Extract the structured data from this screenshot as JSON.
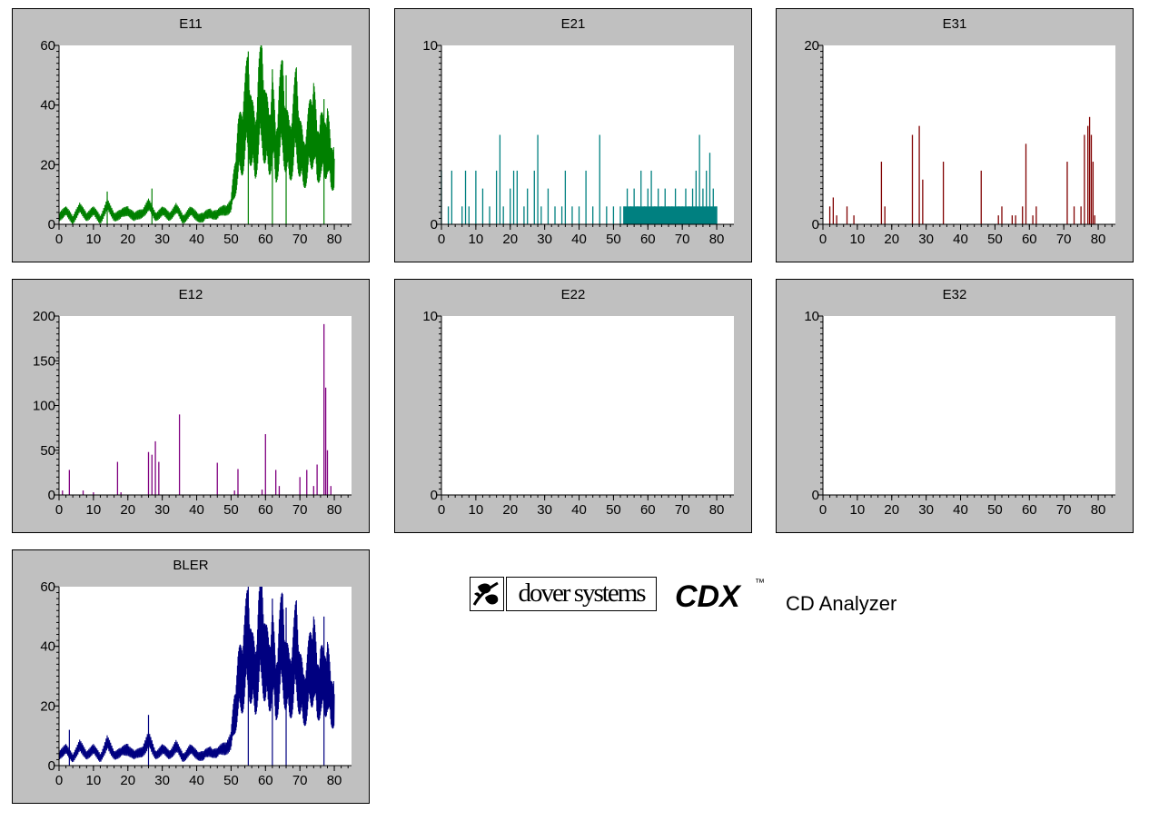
{
  "colors": {
    "E11": "#008000",
    "E21": "#008080",
    "E31": "#800000",
    "E12": "#800080",
    "E22": "#000080",
    "E32": "#000080",
    "BLER": "#000080",
    "panel_bg": "#c0c0c0",
    "plot_bg": "#ffffff"
  },
  "chart_data": [
    {
      "title": "E11",
      "type": "line",
      "xlim": [
        0,
        85
      ],
      "ylim": [
        0,
        60
      ],
      "xticks": [
        "0",
        "10",
        "20",
        "30",
        "40",
        "50",
        "60",
        "70",
        "80"
      ],
      "yticks": [
        "0",
        "20",
        "40",
        "60"
      ],
      "series": [
        {
          "x": [
            0,
            2,
            4,
            6,
            8,
            10,
            12,
            14,
            16,
            18,
            20,
            22,
            24,
            26,
            28,
            30,
            32,
            34,
            36,
            38,
            40,
            42,
            44,
            46,
            48,
            50,
            51,
            52,
            53,
            54,
            55,
            56,
            57,
            58,
            59,
            60,
            61,
            62,
            63,
            64,
            65,
            66,
            67,
            68,
            69,
            70,
            71,
            72,
            73,
            74,
            75,
            76,
            77,
            78,
            79,
            80
          ],
          "y": [
            3,
            4,
            2,
            5,
            3,
            4,
            2,
            6,
            3,
            3,
            5,
            2,
            4,
            6,
            3,
            4,
            3,
            5,
            2,
            4,
            3,
            2,
            4,
            3,
            5,
            6,
            15,
            24,
            28,
            34,
            42,
            30,
            25,
            38,
            44,
            32,
            27,
            36,
            22,
            34,
            40,
            28,
            24,
            30,
            38,
            26,
            20,
            24,
            30,
            36,
            22,
            28,
            24,
            30,
            18,
            22
          ]
        }
      ],
      "spikes": [
        {
          "x": 14,
          "y": 11
        },
        {
          "x": 27,
          "y": 12
        },
        {
          "x": 55,
          "y": 58
        },
        {
          "x": 62,
          "y": 52
        },
        {
          "x": 66,
          "y": 50
        },
        {
          "x": 77,
          "y": 42
        }
      ]
    },
    {
      "title": "E21",
      "type": "bar",
      "xlim": [
        0,
        85
      ],
      "ylim": [
        0,
        10
      ],
      "xticks": [
        "0",
        "10",
        "20",
        "30",
        "40",
        "50",
        "60",
        "70",
        "80"
      ],
      "yticks": [
        "0",
        "10"
      ],
      "bars": [
        [
          0,
          3
        ],
        [
          2,
          1
        ],
        [
          3,
          3
        ],
        [
          6,
          1
        ],
        [
          7,
          3
        ],
        [
          8,
          1
        ],
        [
          10,
          3
        ],
        [
          12,
          2
        ],
        [
          14,
          1
        ],
        [
          16,
          3
        ],
        [
          17,
          5
        ],
        [
          18,
          1
        ],
        [
          20,
          2
        ],
        [
          21,
          3
        ],
        [
          22,
          3
        ],
        [
          24,
          1
        ],
        [
          25,
          2
        ],
        [
          27,
          3
        ],
        [
          28,
          5
        ],
        [
          29,
          1
        ],
        [
          31,
          2
        ],
        [
          33,
          1
        ],
        [
          35,
          1
        ],
        [
          36,
          3
        ],
        [
          38,
          1
        ],
        [
          40,
          1
        ],
        [
          42,
          3
        ],
        [
          44,
          1
        ],
        [
          46,
          5
        ],
        [
          48,
          1
        ],
        [
          50,
          1
        ],
        [
          52,
          1
        ],
        [
          53,
          1
        ],
        [
          54,
          2
        ],
        [
          55,
          1
        ],
        [
          56,
          2
        ],
        [
          57,
          1
        ],
        [
          58,
          3
        ],
        [
          59,
          1
        ],
        [
          60,
          2
        ],
        [
          61,
          3
        ],
        [
          62,
          1
        ],
        [
          63,
          2
        ],
        [
          64,
          1
        ],
        [
          65,
          2
        ],
        [
          66,
          1
        ],
        [
          67,
          1
        ],
        [
          68,
          2
        ],
        [
          69,
          1
        ],
        [
          70,
          1
        ],
        [
          71,
          2
        ],
        [
          72,
          1
        ],
        [
          73,
          2
        ],
        [
          74,
          3
        ],
        [
          75,
          5
        ],
        [
          76,
          2
        ],
        [
          77,
          3
        ],
        [
          78,
          4
        ],
        [
          79,
          2
        ],
        [
          80,
          1
        ]
      ],
      "fill_band": {
        "x0": 53,
        "x1": 80,
        "y": 1
      }
    },
    {
      "title": "E31",
      "type": "bar",
      "xlim": [
        0,
        85
      ],
      "ylim": [
        0,
        20
      ],
      "xticks": [
        "0",
        "10",
        "20",
        "30",
        "40",
        "50",
        "60",
        "70",
        "80"
      ],
      "yticks": [
        "0",
        "20"
      ],
      "bars": [
        [
          2,
          2
        ],
        [
          3,
          3
        ],
        [
          4,
          1
        ],
        [
          7,
          2
        ],
        [
          9,
          1
        ],
        [
          17,
          7
        ],
        [
          18,
          2
        ],
        [
          26,
          10
        ],
        [
          28,
          11
        ],
        [
          29,
          5
        ],
        [
          35,
          7
        ],
        [
          46,
          6
        ],
        [
          51,
          1
        ],
        [
          52,
          2
        ],
        [
          55,
          1
        ],
        [
          56,
          1
        ],
        [
          58,
          2
        ],
        [
          59,
          9
        ],
        [
          61,
          1
        ],
        [
          62,
          2
        ],
        [
          71,
          7
        ],
        [
          73,
          2
        ],
        [
          75,
          2
        ],
        [
          76,
          10
        ],
        [
          77,
          11
        ],
        [
          77.5,
          12
        ],
        [
          78,
          10
        ],
        [
          78.5,
          7
        ],
        [
          79,
          1
        ]
      ]
    },
    {
      "title": "E12",
      "type": "bar",
      "xlim": [
        0,
        85
      ],
      "ylim": [
        0,
        200
      ],
      "xticks": [
        "0",
        "10",
        "20",
        "30",
        "40",
        "50",
        "60",
        "70",
        "80"
      ],
      "yticks": [
        "0",
        "50",
        "100",
        "150",
        "200"
      ],
      "bars": [
        [
          1,
          5
        ],
        [
          3,
          28
        ],
        [
          7,
          5
        ],
        [
          10,
          3
        ],
        [
          17,
          37
        ],
        [
          18,
          3
        ],
        [
          26,
          48
        ],
        [
          27,
          45
        ],
        [
          28,
          60
        ],
        [
          29,
          37
        ],
        [
          35,
          90
        ],
        [
          46,
          36
        ],
        [
          51,
          5
        ],
        [
          52,
          29
        ],
        [
          59,
          6
        ],
        [
          60,
          68
        ],
        [
          63,
          28
        ],
        [
          64,
          10
        ],
        [
          70,
          20
        ],
        [
          72,
          28
        ],
        [
          74,
          10
        ],
        [
          75,
          34
        ],
        [
          77,
          191
        ],
        [
          77.5,
          120
        ],
        [
          78,
          50
        ],
        [
          79,
          10
        ]
      ]
    },
    {
      "title": "E22",
      "type": "bar",
      "xlim": [
        0,
        85
      ],
      "ylim": [
        0,
        10
      ],
      "xticks": [
        "0",
        "10",
        "20",
        "30",
        "40",
        "50",
        "60",
        "70",
        "80"
      ],
      "yticks": [
        "0",
        "10"
      ],
      "bars": []
    },
    {
      "title": "E32",
      "type": "bar",
      "xlim": [
        0,
        85
      ],
      "ylim": [
        0,
        10
      ],
      "xticks": [
        "0",
        "10",
        "20",
        "30",
        "40",
        "50",
        "60",
        "70",
        "80"
      ],
      "yticks": [
        "0",
        "10"
      ],
      "bars": []
    },
    {
      "title": "BLER",
      "type": "line",
      "xlim": [
        0,
        85
      ],
      "ylim": [
        0,
        60
      ],
      "xticks": [
        "0",
        "10",
        "20",
        "30",
        "40",
        "50",
        "60",
        "70",
        "80"
      ],
      "yticks": [
        "0",
        "20",
        "40",
        "60"
      ],
      "series": [
        {
          "x": [
            0,
            2,
            4,
            6,
            8,
            10,
            12,
            14,
            16,
            18,
            20,
            22,
            24,
            26,
            28,
            30,
            32,
            34,
            36,
            38,
            40,
            42,
            44,
            46,
            48,
            50,
            51,
            52,
            53,
            54,
            55,
            56,
            57,
            58,
            59,
            60,
            61,
            62,
            63,
            64,
            65,
            66,
            67,
            68,
            69,
            70,
            71,
            72,
            73,
            74,
            75,
            76,
            77,
            78,
            79,
            80
          ],
          "y": [
            4,
            5,
            3,
            6,
            4,
            5,
            3,
            7,
            4,
            4,
            6,
            3,
            5,
            8,
            4,
            5,
            4,
            6,
            3,
            5,
            4,
            3,
            5,
            4,
            6,
            8,
            18,
            26,
            30,
            36,
            44,
            32,
            28,
            40,
            46,
            34,
            30,
            38,
            24,
            36,
            42,
            30,
            26,
            32,
            40,
            28,
            22,
            26,
            32,
            38,
            24,
            30,
            26,
            32,
            20,
            24
          ]
        }
      ],
      "spikes": [
        {
          "x": 3,
          "y": 12
        },
        {
          "x": 26,
          "y": 17
        },
        {
          "x": 55,
          "y": 60
        },
        {
          "x": 62,
          "y": 56
        },
        {
          "x": 66,
          "y": 53
        },
        {
          "x": 77,
          "y": 50
        }
      ]
    }
  ],
  "branding": {
    "company": "dover systems",
    "product": "CDX",
    "trademark": "™",
    "tagline": "CD Analyzer"
  }
}
